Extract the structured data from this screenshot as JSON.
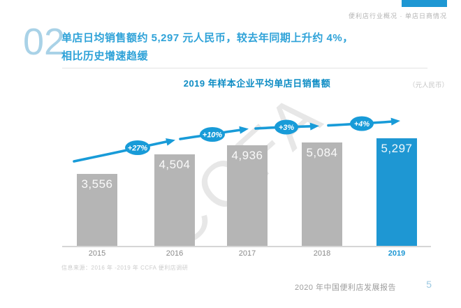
{
  "colors": {
    "accent_blue": "#1e97d3",
    "line_blue": "#189bd8",
    "bar_gray": "#b5b5b5",
    "chart_title_blue": "#0d8cc4",
    "headline_blue": "#2ea2d8",
    "section_number_blue": "#a9d2e7"
  },
  "header": {
    "breadcrumb": "便利店行业概况 · 单店日商情况"
  },
  "section": {
    "number": "02",
    "headline_line1": "单店日均销售额约 5,297 元人民币，较去年同期上升约 4%，",
    "headline_line2": "相比历史增速趋缓"
  },
  "chart": {
    "title": "2019 年样本企业平均单店日销售额",
    "unit_note": "（元人民币）",
    "watermark": "CCFA",
    "categories": [
      "2015",
      "2016",
      "2017",
      "2018",
      "2019"
    ],
    "value_labels": [
      "3,556",
      "4,504",
      "4,936",
      "5,084",
      "5,297"
    ],
    "growth_labels": [
      "+27%",
      "+10%",
      "+3%",
      "+4%"
    ]
  },
  "chart_data": {
    "type": "bar",
    "title": "2019 年样本企业平均单店日销售额",
    "unit": "元人民币",
    "categories": [
      "2015",
      "2016",
      "2017",
      "2018",
      "2019"
    ],
    "values": [
      3556,
      4504,
      4936,
      5084,
      5297
    ],
    "yoy_growth_labels": [
      "+27%",
      "+10%",
      "+3%",
      "+4%"
    ],
    "highlight_category": "2019",
    "highlight_index": 4,
    "legend": false,
    "gridlines": false,
    "ylim": [
      0,
      5600
    ]
  },
  "footnote": "信息来源：2016 年 -2019 年 CCFA 便利店调研",
  "footer": {
    "report_title": "2020 年中国便利店发展报告",
    "page_number": "5"
  }
}
